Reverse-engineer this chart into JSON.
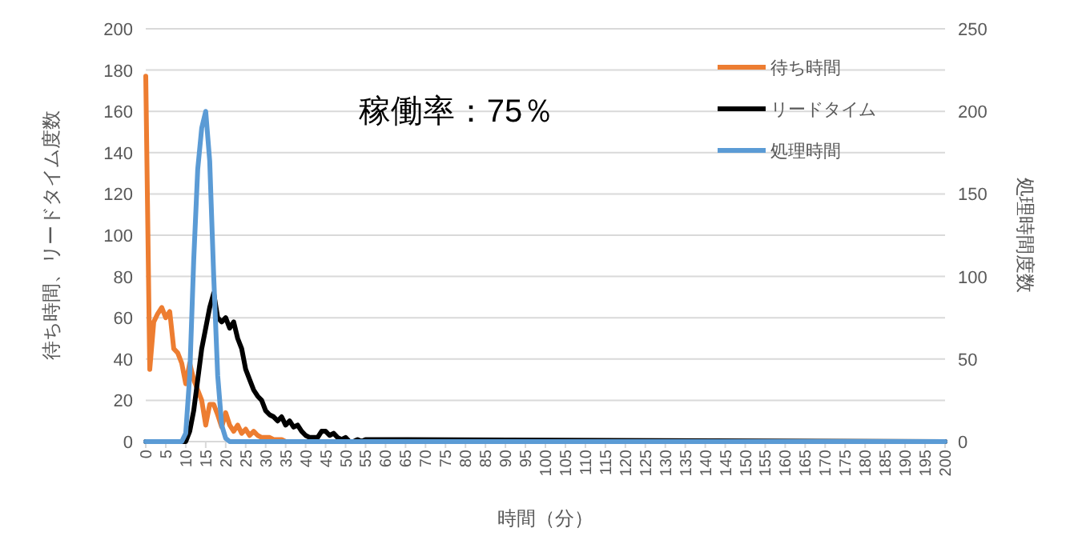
{
  "chart_data": {
    "type": "line",
    "xlabel": "時間（分）",
    "ylabel": "待ち時間、リードタイム度数",
    "y2label": "処理時間度数",
    "annotations": [
      "稼働率：75％"
    ],
    "xlim": [
      0,
      200
    ],
    "xticks": [
      0,
      5,
      10,
      15,
      20,
      25,
      30,
      35,
      40,
      45,
      50,
      55,
      60,
      65,
      70,
      75,
      80,
      85,
      90,
      95,
      100,
      105,
      110,
      115,
      120,
      125,
      130,
      135,
      140,
      145,
      150,
      155,
      160,
      165,
      170,
      175,
      180,
      185,
      190,
      195,
      200
    ],
    "ylim": [
      0,
      200
    ],
    "yticks": [
      0,
      20,
      40,
      60,
      80,
      100,
      120,
      140,
      160,
      180,
      200
    ],
    "y2lim": [
      0,
      250
    ],
    "y2ticks": [
      0,
      50,
      100,
      150,
      200,
      250
    ],
    "grid": "y",
    "legend": "top right",
    "series": [
      {
        "name": "待ち時間",
        "color": "#ed7d31",
        "x": [
          0,
          1,
          2,
          3,
          4,
          5,
          6,
          7,
          8,
          9,
          10,
          11,
          12,
          13,
          14,
          15,
          16,
          17,
          18,
          19,
          20,
          21,
          22,
          23,
          24,
          25,
          26,
          27,
          28,
          29,
          30,
          31,
          32,
          33,
          34,
          35,
          200
        ],
        "values": [
          177,
          35,
          58,
          62,
          65,
          60,
          63,
          45,
          43,
          38,
          28,
          38,
          30,
          25,
          20,
          8,
          18,
          18,
          13,
          7,
          14,
          8,
          5,
          8,
          4,
          6,
          3,
          5,
          3,
          2,
          2,
          2,
          1,
          1,
          1,
          0,
          0
        ]
      },
      {
        "name": "リードタイム",
        "color": "#000000",
        "x": [
          0,
          10,
          11,
          12,
          13,
          14,
          15,
          16,
          17,
          18,
          19,
          20,
          21,
          22,
          23,
          24,
          25,
          26,
          27,
          28,
          29,
          30,
          31,
          32,
          33,
          34,
          35,
          36,
          37,
          38,
          39,
          40,
          41,
          42,
          43,
          44,
          45,
          46,
          47,
          48,
          49,
          50,
          51,
          52,
          53,
          54,
          55,
          200
        ],
        "values": [
          0,
          0,
          5,
          15,
          30,
          45,
          55,
          65,
          72,
          60,
          58,
          60,
          55,
          58,
          50,
          45,
          35,
          30,
          25,
          22,
          20,
          15,
          13,
          12,
          10,
          12,
          8,
          10,
          7,
          8,
          5,
          3,
          2,
          2,
          2,
          5,
          5,
          3,
          4,
          2,
          1,
          2,
          0,
          0,
          1,
          0,
          1,
          0
        ]
      },
      {
        "name": "処理時間",
        "color": "#5b9bd5",
        "axis": "y2",
        "x": [
          0,
          9,
          10,
          11,
          12,
          13,
          14,
          15,
          16,
          17,
          18,
          19,
          20,
          21,
          200
        ],
        "values": [
          0,
          0,
          5,
          40,
          110,
          165,
          190,
          200,
          170,
          100,
          40,
          10,
          2,
          0,
          0
        ]
      }
    ]
  }
}
